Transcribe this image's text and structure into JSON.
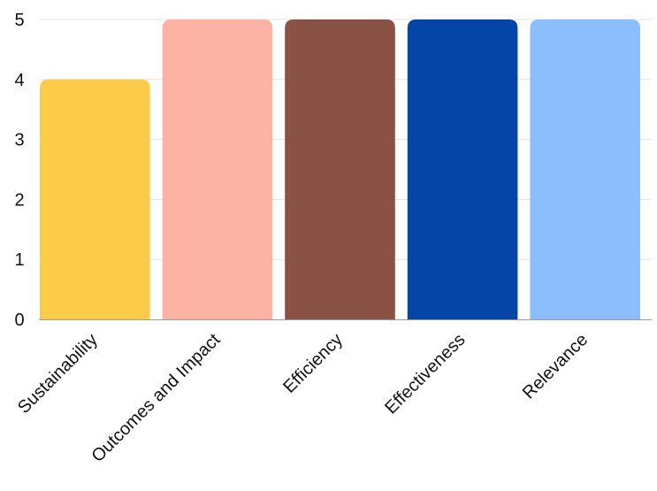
{
  "chart_data": {
    "type": "bar",
    "categories": [
      "Sustainability",
      "Outcomes and Impact",
      "Efficiency",
      "Effectiveness",
      "Relevance"
    ],
    "values": [
      4,
      5,
      5,
      5,
      5
    ],
    "colors": [
      "#fdcb4a",
      "#fdb3a3",
      "#8a5244",
      "#0645a8",
      "#8cbefe"
    ],
    "ylim": [
      0,
      5
    ],
    "yticks": [
      0,
      1,
      2,
      3,
      4,
      5
    ],
    "grid": true,
    "legend": "none",
    "title": "",
    "xlabel": "",
    "ylabel": ""
  }
}
